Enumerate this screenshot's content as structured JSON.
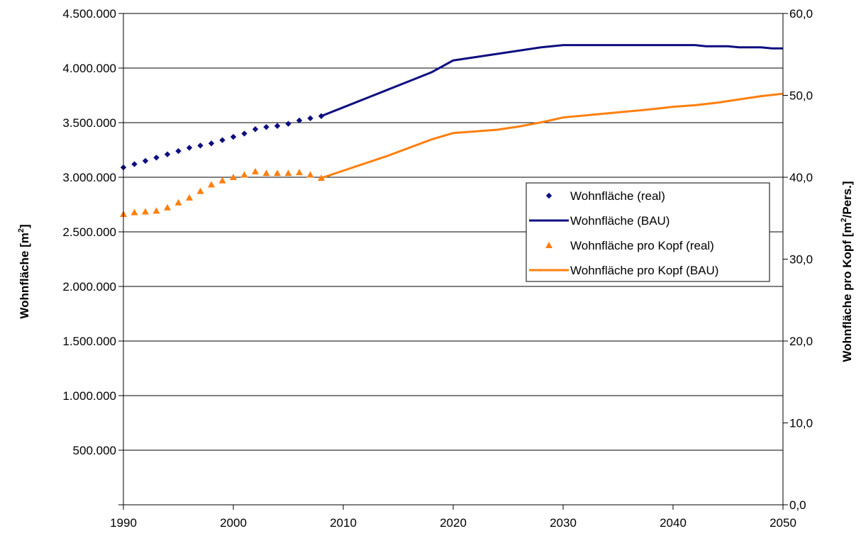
{
  "chart_data": {
    "type": "line",
    "x_axis": {
      "range": [
        1990,
        2050
      ],
      "ticks": [
        "1990",
        "2000",
        "2010",
        "2020",
        "2030",
        "2040",
        "2050"
      ],
      "label": ""
    },
    "y_left": {
      "label_main": "Wohnfläche [m",
      "label_sup": "2",
      "label_end": "]",
      "range": [
        0,
        4500000
      ],
      "ticks": [
        {
          "value": 500000,
          "label": "500.000"
        },
        {
          "value": 1000000,
          "label": "1.000.000"
        },
        {
          "value": 1500000,
          "label": "1.500.000"
        },
        {
          "value": 2000000,
          "label": "2.000.000"
        },
        {
          "value": 2500000,
          "label": "2.500.000"
        },
        {
          "value": 3000000,
          "label": "3.000.000"
        },
        {
          "value": 3500000,
          "label": "3.500.000"
        },
        {
          "value": 4000000,
          "label": "4.000.000"
        },
        {
          "value": 4500000,
          "label": "4.500.000"
        }
      ]
    },
    "y_right": {
      "label_main": "Wohnfläche pro Kopf [m",
      "label_sup": "2",
      "label_end": "/Pers.]",
      "range": [
        0,
        60
      ],
      "ticks": [
        {
          "value": 0,
          "label": "0,0"
        },
        {
          "value": 10,
          "label": "10,0"
        },
        {
          "value": 20,
          "label": "20,0"
        },
        {
          "value": 30,
          "label": "30,0"
        },
        {
          "value": 40,
          "label": "40,0"
        },
        {
          "value": 50,
          "label": "50,0"
        },
        {
          "value": 60,
          "label": "60,0"
        }
      ]
    },
    "grid": "horizontal major gridlines (left axis)",
    "legend_position": "right, inside plot",
    "series": [
      {
        "name": "Wohnfläche (real)",
        "kind": "markers",
        "marker": "diamond",
        "axis": "left",
        "color": "#0d0d80",
        "x": [
          1990,
          1991,
          1992,
          1993,
          1994,
          1995,
          1996,
          1997,
          1998,
          1999,
          2000,
          2001,
          2002,
          2003,
          2004,
          2005,
          2006,
          2007,
          2008
        ],
        "y": [
          3090000,
          3120000,
          3150000,
          3180000,
          3210000,
          3240000,
          3270000,
          3290000,
          3310000,
          3340000,
          3370000,
          3400000,
          3440000,
          3460000,
          3470000,
          3490000,
          3520000,
          3540000,
          3560000
        ]
      },
      {
        "name": "Wohnfläche (BAU)",
        "kind": "line",
        "axis": "left",
        "color": "#0d0d80",
        "x": [
          2008,
          2010,
          2012,
          2014,
          2016,
          2018,
          2020,
          2022,
          2024,
          2026,
          2028,
          2030,
          2035,
          2040,
          2042,
          2043,
          2045,
          2046,
          2048,
          2049,
          2050
        ],
        "y": [
          3560000,
          3640000,
          3720000,
          3800000,
          3880000,
          3960000,
          4070000,
          4100000,
          4130000,
          4160000,
          4190000,
          4210000,
          4210000,
          4210000,
          4210000,
          4200000,
          4200000,
          4190000,
          4190000,
          4180000,
          4180000
        ]
      },
      {
        "name": "Wohnfläche pro Kopf (real)",
        "kind": "markers",
        "marker": "triangle",
        "axis": "right",
        "color": "#ff7f0e",
        "x": [
          1990,
          1991,
          1992,
          1993,
          1994,
          1995,
          1996,
          1997,
          1998,
          1999,
          2000,
          2001,
          2002,
          2003,
          2004,
          2005,
          2006,
          2007,
          2008
        ],
        "y": [
          35.5,
          35.7,
          35.8,
          35.9,
          36.3,
          36.9,
          37.5,
          38.3,
          39.1,
          39.6,
          40.0,
          40.3,
          40.7,
          40.5,
          40.5,
          40.5,
          40.6,
          40.3,
          39.9
        ]
      },
      {
        "name": "Wohnfläche pro Kopf (BAU)",
        "kind": "line",
        "axis": "right",
        "color": "#ff7f0e",
        "x": [
          2008,
          2010,
          2012,
          2014,
          2016,
          2018,
          2020,
          2022,
          2024,
          2026,
          2028,
          2030,
          2034,
          2038,
          2040,
          2042,
          2044,
          2046,
          2048,
          2050
        ],
        "y": [
          39.9,
          40.8,
          41.7,
          42.6,
          43.6,
          44.6,
          45.4,
          45.6,
          45.8,
          46.2,
          46.7,
          47.3,
          47.8,
          48.3,
          48.6,
          48.8,
          49.1,
          49.5,
          49.9,
          50.2
        ]
      }
    ]
  }
}
